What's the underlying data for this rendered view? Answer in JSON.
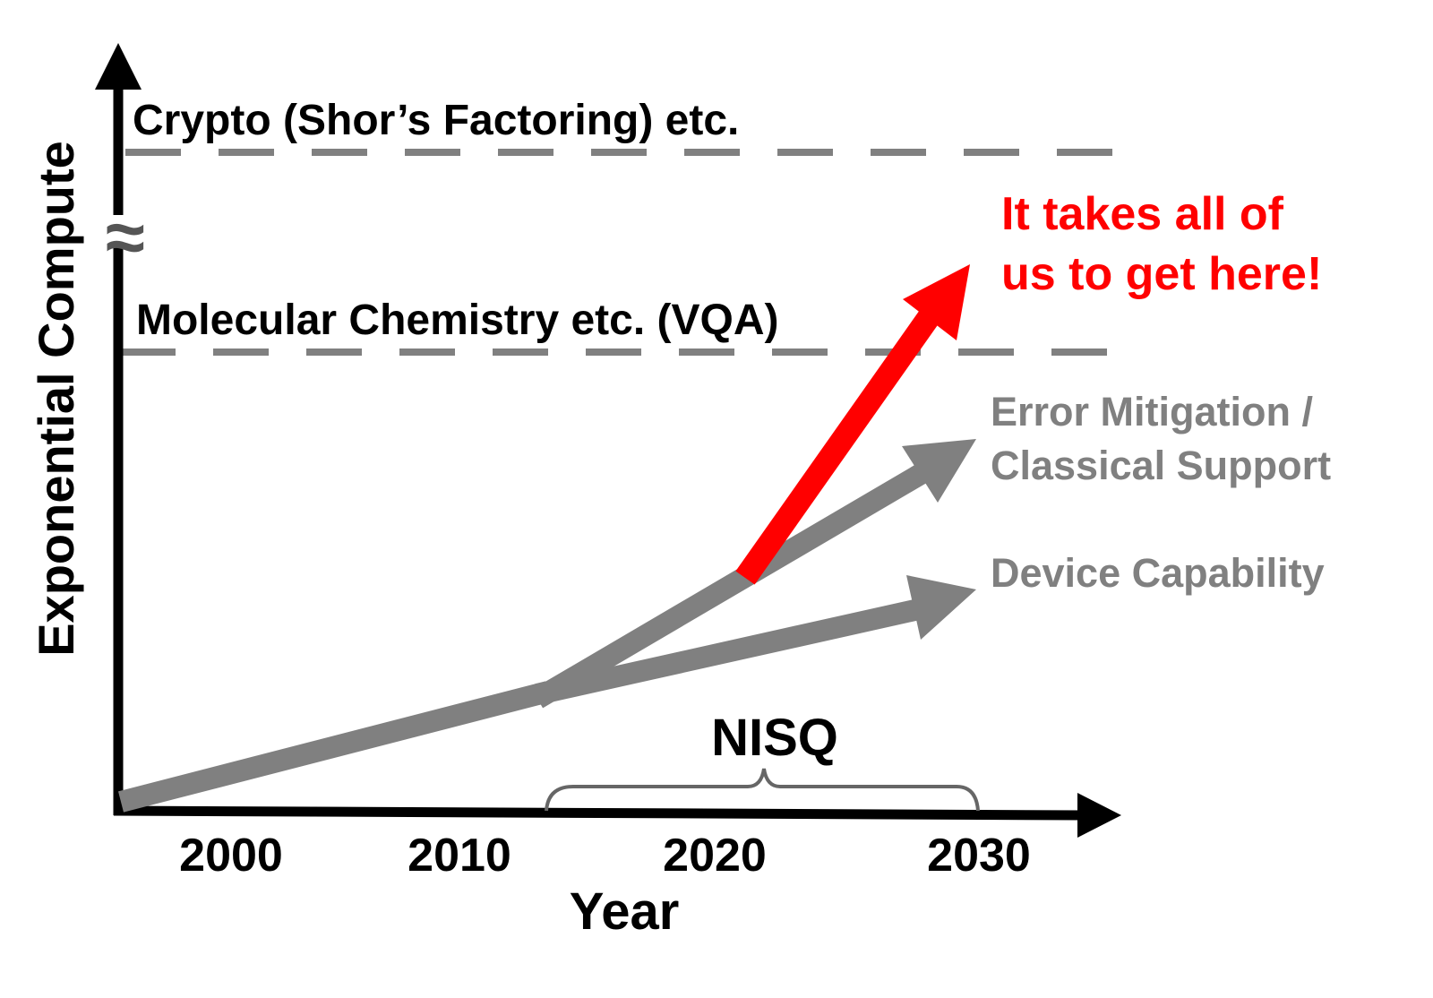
{
  "colors": {
    "axis": "#000000",
    "trend": "#808080",
    "highlight": "#ff0000",
    "brace": "#666666"
  },
  "yaxis": {
    "label": "Exponential Compute",
    "break_symbol": "≈"
  },
  "xaxis": {
    "label": "Year",
    "ticks": [
      "2000",
      "2010",
      "2020",
      "2030"
    ]
  },
  "thresholds": [
    {
      "label": "Crypto (Shor’s Factoring) etc."
    },
    {
      "label": "Molecular Chemistry etc. (VQA)"
    }
  ],
  "period": {
    "label": "NISQ"
  },
  "trends": {
    "error_mitigation": [
      "Error Mitigation /",
      "Classical Support"
    ],
    "device": "Device Capability",
    "callout": [
      "It takes all of",
      "us to get here!"
    ]
  }
}
